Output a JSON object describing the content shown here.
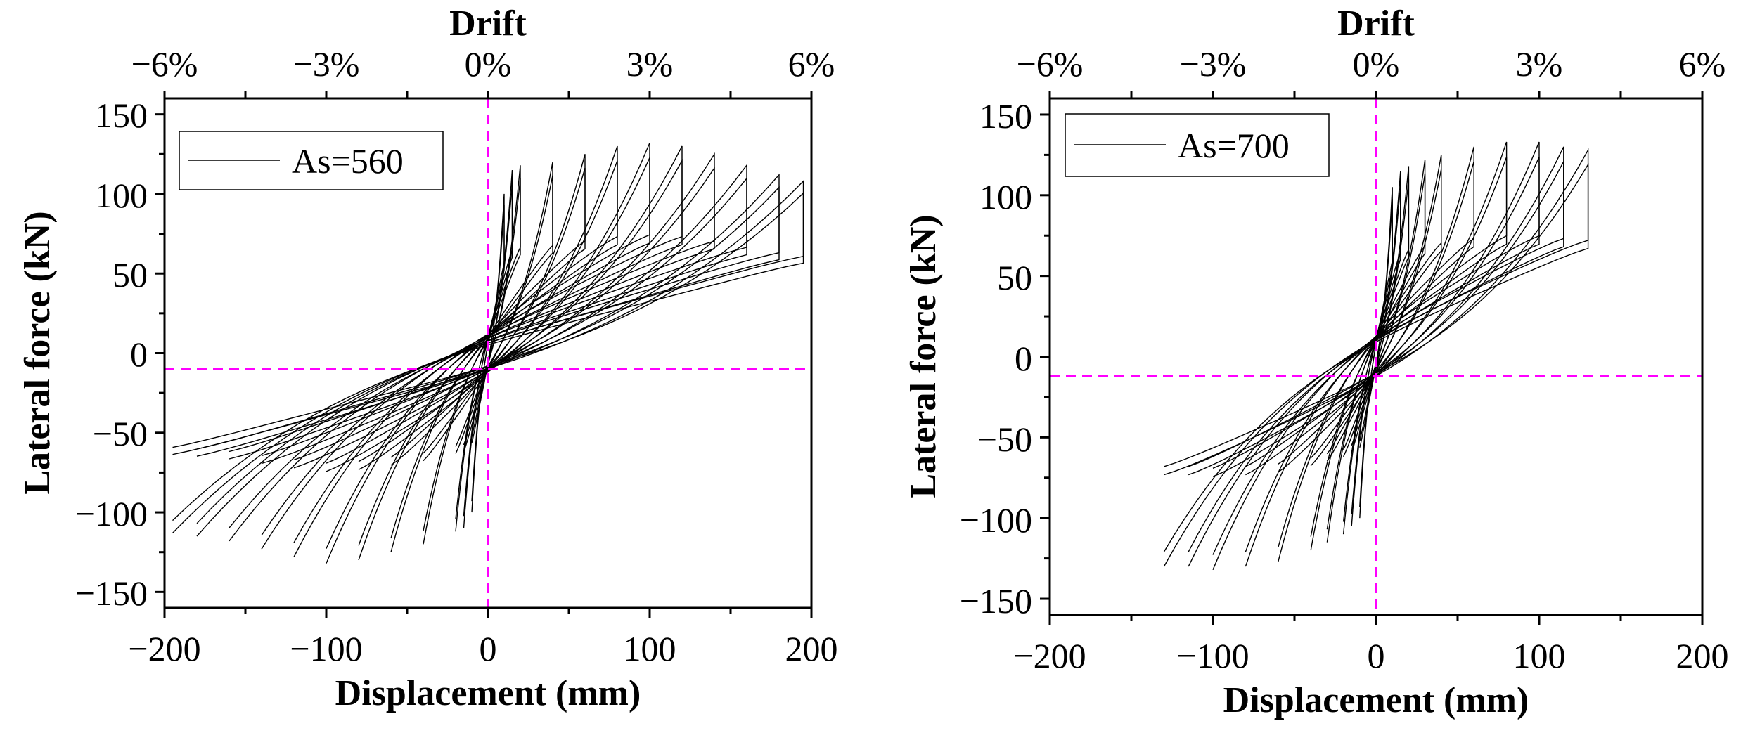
{
  "chart_data": [
    {
      "type": "line",
      "xlabel": "Displacement (mm)",
      "ylabel": "Lateral force (kN)",
      "x2label": "Drift",
      "xlim": [
        -200,
        200
      ],
      "ylim": [
        -160,
        160
      ],
      "xticks": [
        -200,
        -100,
        0,
        100,
        200
      ],
      "xtick_labels": [
        "−200",
        "−100",
        "0",
        "100",
        "200"
      ],
      "yticks": [
        -150,
        -100,
        -50,
        0,
        50,
        100,
        150
      ],
      "ytick_labels": [
        "−150",
        "−100",
        "−50",
        "0",
        "50",
        "100",
        "150"
      ],
      "x2ticks": [
        -6,
        -3,
        0,
        3,
        6
      ],
      "x2tick_labels": [
        "−6%",
        "−3%",
        "0%",
        "3%",
        "6%"
      ],
      "legend": "top-left",
      "grid": false,
      "reference_lines": {
        "x": 0,
        "y": -10,
        "color": "#ff00ff",
        "style": "dashed"
      },
      "series": [
        {
          "name": "As=560",
          "color": "#000000",
          "cycles": [
            {
              "amp": 10,
              "peak_pos": 100,
              "peak_neg": -100
            },
            {
              "amp": 15,
              "peak_pos": 115,
              "peak_neg": -110
            },
            {
              "amp": 20,
              "peak_pos": 118,
              "peak_neg": -112
            },
            {
              "amp": 40,
              "peak_pos": 120,
              "peak_neg": -120
            },
            {
              "amp": 60,
              "peak_pos": 125,
              "peak_neg": -125
            },
            {
              "amp": 80,
              "peak_pos": 130,
              "peak_neg": -130
            },
            {
              "amp": 100,
              "peak_pos": 132,
              "peak_neg": -132
            },
            {
              "amp": 120,
              "peak_pos": 130,
              "peak_neg": -128
            },
            {
              "amp": 140,
              "peak_pos": 125,
              "peak_neg": -123
            },
            {
              "amp": 160,
              "peak_pos": 118,
              "peak_neg": -118
            },
            {
              "amp": 180,
              "peak_pos": 112,
              "peak_neg": -115
            },
            {
              "amp": 195,
              "peak_pos": 108,
              "peak_neg": -113
            }
          ]
        }
      ]
    },
    {
      "type": "line",
      "xlabel": "Displacement (mm)",
      "ylabel": "Lateral force (kN)",
      "x2label": "Drift",
      "xlim": [
        -200,
        200
      ],
      "ylim": [
        -160,
        160
      ],
      "xticks": [
        -200,
        -100,
        0,
        100,
        200
      ],
      "xtick_labels": [
        "−200",
        "−100",
        "0",
        "100",
        "200"
      ],
      "yticks": [
        -150,
        -100,
        -50,
        0,
        50,
        100,
        150
      ],
      "ytick_labels": [
        "−150",
        "−100",
        "−50",
        "0",
        "50",
        "100",
        "150"
      ],
      "x2ticks": [
        -6,
        -3,
        0,
        3,
        6
      ],
      "x2tick_labels": [
        "−6%",
        "−3%",
        "0%",
        "3%",
        "6%"
      ],
      "legend": "top-left",
      "grid": false,
      "reference_lines": {
        "x": 0,
        "y": -12,
        "color": "#ff00ff",
        "style": "dashed"
      },
      "series": [
        {
          "name": "As=700",
          "color": "#000000",
          "cycles": [
            {
              "amp": 10,
              "peak_pos": 105,
              "peak_neg": -100
            },
            {
              "amp": 15,
              "peak_pos": 115,
              "peak_neg": -105
            },
            {
              "amp": 20,
              "peak_pos": 118,
              "peak_neg": -110
            },
            {
              "amp": 30,
              "peak_pos": 122,
              "peak_neg": -115
            },
            {
              "amp": 40,
              "peak_pos": 125,
              "peak_neg": -120
            },
            {
              "amp": 60,
              "peak_pos": 130,
              "peak_neg": -127
            },
            {
              "amp": 80,
              "peak_pos": 133,
              "peak_neg": -130
            },
            {
              "amp": 100,
              "peak_pos": 133,
              "peak_neg": -132
            },
            {
              "amp": 115,
              "peak_pos": 130,
              "peak_neg": -130
            },
            {
              "amp": 130,
              "peak_pos": 128,
              "peak_neg": -130
            }
          ]
        }
      ]
    }
  ]
}
